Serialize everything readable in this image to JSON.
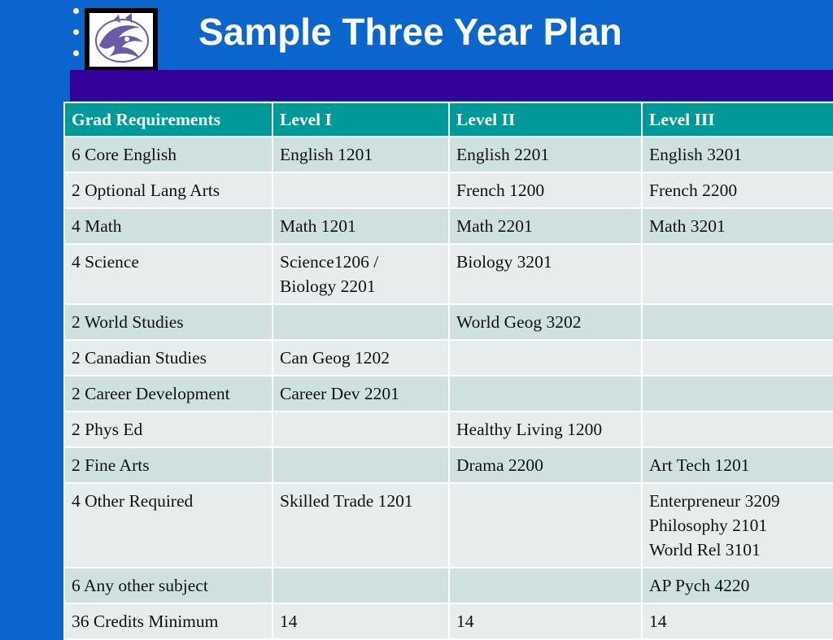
{
  "slide": {
    "title": "Sample Three Year Plan"
  },
  "colors": {
    "background": "#0a66cc",
    "bar": "#330099",
    "header_row": "#009999",
    "row_dark": "#cfe0e0",
    "row_light": "#e7eded"
  },
  "logo": {
    "icon": "mascot-logo-icon"
  },
  "table": {
    "headers": [
      "Grad Requirements",
      "Level I",
      "Level II",
      "Level III"
    ],
    "rows": [
      {
        "requirement": "6 Core English",
        "level1": [
          "English 1201"
        ],
        "level2": [
          "English 2201"
        ],
        "level3": [
          "English 3201"
        ]
      },
      {
        "requirement": "2 Optional Lang Arts",
        "level1": [],
        "level2": [
          "French 1200"
        ],
        "level3": [
          "French 2200"
        ]
      },
      {
        "requirement": "4 Math",
        "level1": [
          "Math 1201"
        ],
        "level2": [
          "Math 2201"
        ],
        "level3": [
          "Math 3201"
        ]
      },
      {
        "requirement": "4 Science",
        "level1": [
          "Science1206 /",
          "Biology 2201"
        ],
        "level2": [
          "Biology 3201"
        ],
        "level3": []
      },
      {
        "requirement": "2 World Studies",
        "level1": [],
        "level2": [
          "World Geog 3202"
        ],
        "level3": []
      },
      {
        "requirement": "2 Canadian Studies",
        "level1": [
          "Can Geog 1202"
        ],
        "level2": [],
        "level3": []
      },
      {
        "requirement": "2 Career Development",
        "level1": [
          "Career Dev 2201"
        ],
        "level2": [],
        "level3": []
      },
      {
        "requirement": "2 Phys Ed",
        "level1": [],
        "level2": [
          "Healthy Living 1200"
        ],
        "level3": []
      },
      {
        "requirement": "2 Fine Arts",
        "level1": [],
        "level2": [
          "Drama 2200"
        ],
        "level3": [
          "Art Tech 1201"
        ]
      },
      {
        "requirement": "4 Other Required",
        "level1": [
          "Skilled Trade 1201"
        ],
        "level2": [],
        "level3": [
          "Enterpreneur 3209",
          "Philosophy 2101",
          "World Rel 3101"
        ]
      },
      {
        "requirement": "6 Any other subject",
        "level1": [],
        "level2": [],
        "level3": [
          "AP Pych 4220"
        ]
      },
      {
        "requirement": "36 Credits Minimum",
        "level1": [
          "14"
        ],
        "level2": [
          "14"
        ],
        "level3": [
          "14"
        ]
      }
    ]
  }
}
